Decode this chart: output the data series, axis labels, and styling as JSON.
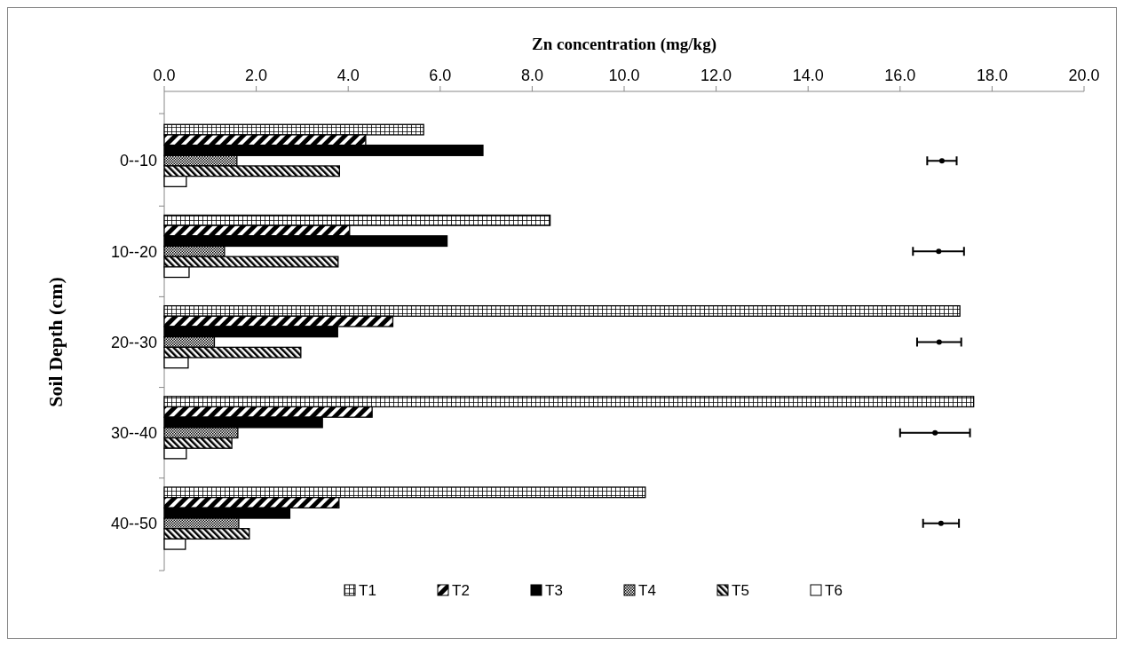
{
  "chart_data": {
    "type": "bar",
    "orientation": "horizontal",
    "xlabel": "Zn concentration (mg/kg)",
    "ylabel": "Soil Depth (cm)",
    "categories": [
      "0--10",
      "10--20",
      "20--30",
      "30--40",
      "40--50"
    ],
    "xlim": [
      0,
      20
    ],
    "xticks": [
      {
        "value": 0,
        "label": "0.0"
      },
      {
        "value": 2,
        "label": "2.0"
      },
      {
        "value": 4,
        "label": "4.0"
      },
      {
        "value": 6,
        "label": "6.0"
      },
      {
        "value": 8,
        "label": "8.0"
      },
      {
        "value": 10,
        "label": "10.0"
      },
      {
        "value": 12,
        "label": "12.0"
      },
      {
        "value": 14,
        "label": "14.0"
      },
      {
        "value": 16,
        "label": "16.0"
      },
      {
        "value": 18,
        "label": "18.0"
      },
      {
        "value": 20,
        "label": "20.0"
      }
    ],
    "series": [
      {
        "name": "T1",
        "color": "#000000",
        "values": [
          5.64,
          8.39,
          17.3,
          17.6,
          10.46
        ]
      },
      {
        "name": "T2",
        "color": "#000000",
        "values": [
          4.38,
          4.03,
          4.97,
          4.52,
          3.8
        ]
      },
      {
        "name": "T3",
        "color": "#000000",
        "values": [
          6.93,
          6.15,
          3.77,
          3.44,
          2.73
        ]
      },
      {
        "name": "T4",
        "color": "#000000",
        "values": [
          1.58,
          1.31,
          1.09,
          1.6,
          1.62
        ]
      },
      {
        "name": "T5",
        "color": "#000000",
        "values": [
          3.81,
          3.78,
          2.97,
          1.47,
          1.85
        ]
      },
      {
        "name": "T6",
        "color": "#ffffff",
        "values": [
          0.48,
          0.54,
          0.52,
          0.48,
          0.46
        ]
      },
      {
        "type": "scatter",
        "marker": "circle",
        "color": "#000000",
        "values": [
          16.91,
          16.84,
          16.85,
          16.76,
          16.89
        ],
        "errors": [
          [
            16.59,
            17.23
          ],
          [
            16.28,
            17.39
          ],
          [
            16.37,
            17.33
          ],
          [
            16.0,
            17.52
          ],
          [
            16.5,
            17.28
          ]
        ]
      }
    ],
    "grid": false,
    "legend": "bottom"
  }
}
